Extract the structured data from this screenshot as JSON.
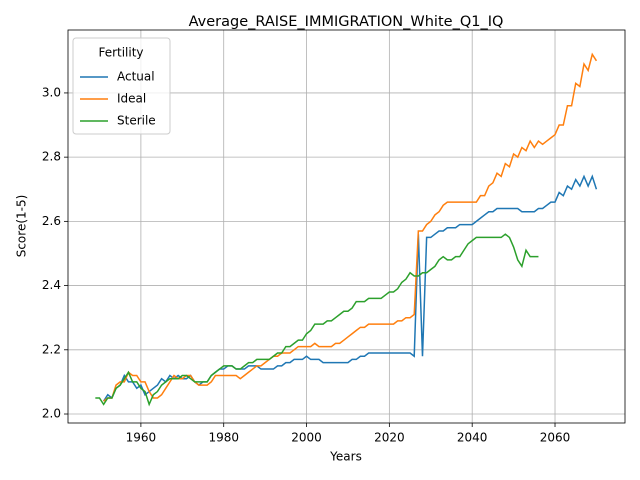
{
  "chart_data": {
    "type": "line",
    "title": "Average_RAISE_IMMIGRATION_White_Q1_IQ",
    "xlabel": "Years",
    "ylabel": "Score(1-5)",
    "x": [
      1949,
      1950,
      1951,
      1952,
      1953,
      1954,
      1955,
      1956,
      1957,
      1958,
      1959,
      1960,
      1961,
      1962,
      1963,
      1964,
      1965,
      1966,
      1967,
      1968,
      1969,
      1970,
      1971,
      1972,
      1973,
      1974,
      1975,
      1976,
      1977,
      1978,
      1979,
      1980,
      1981,
      1982,
      1983,
      1984,
      1985,
      1986,
      1987,
      1988,
      1989,
      1990,
      1991,
      1992,
      1993,
      1994,
      1995,
      1996,
      1997,
      1998,
      1999,
      2000,
      2001,
      2002,
      2003,
      2004,
      2005,
      2006,
      2007,
      2008,
      2009,
      2010,
      2011,
      2012,
      2013,
      2014,
      2015,
      2016,
      2017,
      2018,
      2019,
      2020,
      2021,
      2022,
      2023,
      2024,
      2025,
      2026,
      2027,
      2028,
      2029,
      2030,
      2031,
      2032,
      2033,
      2034,
      2035,
      2036,
      2037,
      2038,
      2039,
      2040,
      2041,
      2042,
      2043,
      2044,
      2045,
      2046,
      2047,
      2048,
      2049,
      2050,
      2051,
      2052,
      2053,
      2054,
      2055,
      2056,
      2057,
      2058,
      2059,
      2060,
      2061,
      2062,
      2063,
      2064,
      2065,
      2066,
      2067,
      2068,
      2069,
      2070
    ],
    "series": [
      {
        "name": "Actual",
        "color": "#1f77b4",
        "values": [
          null,
          null,
          2.04,
          2.06,
          2.05,
          2.08,
          2.09,
          2.12,
          2.1,
          2.1,
          2.08,
          2.09,
          2.06,
          2.07,
          2.08,
          2.09,
          2.11,
          2.1,
          2.12,
          2.11,
          2.12,
          2.11,
          2.11,
          2.12,
          2.1,
          2.09,
          2.1,
          2.1,
          2.12,
          2.13,
          2.14,
          2.14,
          2.15,
          2.15,
          2.14,
          2.14,
          2.14,
          2.15,
          2.15,
          2.15,
          2.14,
          2.14,
          2.14,
          2.14,
          2.15,
          2.15,
          2.16,
          2.16,
          2.17,
          2.17,
          2.17,
          2.18,
          2.17,
          2.17,
          2.17,
          2.16,
          2.16,
          2.16,
          2.16,
          2.16,
          2.16,
          2.16,
          2.17,
          2.17,
          2.18,
          2.18,
          2.19,
          2.19,
          2.19,
          2.19,
          2.19,
          2.19,
          2.19,
          2.19,
          2.19,
          2.19,
          2.19,
          2.18,
          2.56,
          2.18,
          2.55,
          2.55,
          2.56,
          2.57,
          2.57,
          2.58,
          2.58,
          2.58,
          2.59,
          2.59,
          2.59,
          2.59,
          2.6,
          2.61,
          2.62,
          2.63,
          2.63,
          2.64,
          2.64,
          2.64,
          2.64,
          2.64,
          2.64,
          2.63,
          2.63,
          2.63,
          2.63,
          2.64,
          2.64,
          2.65,
          2.66,
          2.66,
          2.69,
          2.68,
          2.71,
          2.7,
          2.73,
          2.71,
          2.74,
          2.71,
          2.74,
          2.7
        ]
      },
      {
        "name": "Ideal",
        "color": "#ff7f0e",
        "values": [
          null,
          null,
          2.04,
          2.05,
          2.05,
          2.09,
          2.1,
          2.1,
          2.13,
          2.12,
          2.12,
          2.1,
          2.1,
          2.07,
          2.05,
          2.05,
          2.06,
          2.08,
          2.1,
          2.12,
          2.11,
          2.11,
          2.12,
          2.12,
          2.1,
          2.09,
          2.09,
          2.09,
          2.1,
          2.12,
          2.12,
          2.12,
          2.12,
          2.12,
          2.12,
          2.11,
          2.12,
          2.13,
          2.14,
          2.15,
          2.15,
          2.16,
          2.17,
          2.18,
          2.18,
          2.19,
          2.19,
          2.19,
          2.2,
          2.21,
          2.21,
          2.21,
          2.21,
          2.22,
          2.21,
          2.21,
          2.21,
          2.21,
          2.22,
          2.22,
          2.23,
          2.24,
          2.25,
          2.26,
          2.27,
          2.27,
          2.28,
          2.28,
          2.28,
          2.28,
          2.28,
          2.28,
          2.28,
          2.29,
          2.29,
          2.3,
          2.3,
          2.31,
          2.57,
          2.57,
          2.59,
          2.6,
          2.62,
          2.63,
          2.65,
          2.66,
          2.66,
          2.66,
          2.66,
          2.66,
          2.66,
          2.66,
          2.66,
          2.68,
          2.68,
          2.71,
          2.72,
          2.75,
          2.74,
          2.78,
          2.77,
          2.81,
          2.8,
          2.83,
          2.82,
          2.85,
          2.83,
          2.85,
          2.84,
          2.85,
          2.86,
          2.87,
          2.9,
          2.9,
          2.96,
          2.96,
          3.03,
          3.02,
          3.09,
          3.07,
          3.12,
          3.1
        ]
      },
      {
        "name": "Sterile",
        "color": "#2ca02c",
        "values": [
          2.05,
          2.05,
          2.03,
          2.05,
          2.05,
          2.08,
          2.09,
          2.11,
          2.13,
          2.1,
          2.1,
          2.08,
          2.07,
          2.03,
          2.06,
          2.07,
          2.09,
          2.1,
          2.11,
          2.11,
          2.11,
          2.12,
          2.12,
          2.11,
          2.1,
          2.1,
          2.1,
          2.1,
          2.12,
          2.13,
          2.14,
          2.15,
          2.15,
          2.15,
          2.14,
          2.14,
          2.15,
          2.16,
          2.16,
          2.17,
          2.17,
          2.17,
          2.17,
          2.18,
          2.19,
          2.19,
          2.21,
          2.21,
          2.22,
          2.23,
          2.23,
          2.25,
          2.26,
          2.28,
          2.28,
          2.28,
          2.29,
          2.29,
          2.3,
          2.31,
          2.32,
          2.32,
          2.33,
          2.35,
          2.35,
          2.35,
          2.36,
          2.36,
          2.36,
          2.36,
          2.37,
          2.38,
          2.38,
          2.39,
          2.41,
          2.42,
          2.44,
          2.43,
          2.43,
          2.44,
          2.44,
          2.45,
          2.46,
          2.48,
          2.49,
          2.48,
          2.48,
          2.49,
          2.49,
          2.51,
          2.53,
          2.54,
          2.55,
          2.55,
          2.55,
          2.55,
          2.55,
          2.55,
          2.55,
          2.56,
          2.55,
          2.52,
          2.48,
          2.46,
          2.51,
          2.49,
          2.49,
          2.49,
          null,
          null,
          null,
          null,
          null,
          null,
          null,
          null,
          null,
          null,
          null,
          null,
          null,
          null
        ]
      }
    ],
    "xlim": [
      1942.4,
      2076.9
    ],
    "ylim": [
      1.972,
      3.196
    ],
    "xticks": [
      1960,
      1980,
      2000,
      2020,
      2040,
      2060
    ],
    "yticks": [
      {
        "value": 2,
        "label": "2.0"
      },
      2.2,
      2.4,
      2.6,
      2.8,
      {
        "value": 3,
        "label": "3.0"
      }
    ],
    "grid": true,
    "legend_title": "Fertility",
    "legend": "upper left"
  }
}
